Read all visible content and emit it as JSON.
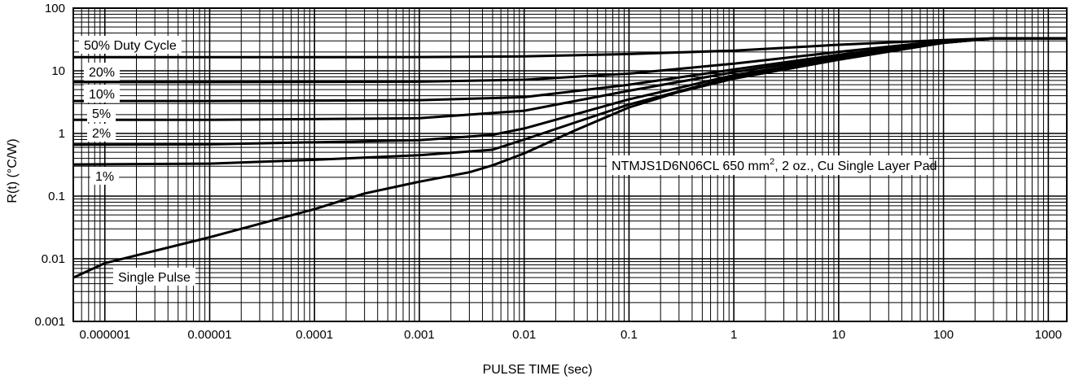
{
  "chart_data": {
    "type": "line",
    "title": "",
    "xlabel": "PULSE TIME (sec)",
    "ylabel": "R(t) (°C/W)",
    "xscale": "log",
    "yscale": "log",
    "xlim": [
      5e-07,
      1500
    ],
    "ylim": [
      0.001,
      100
    ],
    "grid": true,
    "x_tick_labels": [
      "0.000001",
      "0.00001",
      "0.0001",
      "0.001",
      "0.01",
      "0.1",
      "1",
      "10",
      "100",
      "1000"
    ],
    "y_tick_labels": [
      "0.001",
      "0.01",
      "0.1",
      "1",
      "10",
      "100"
    ],
    "annotation": {
      "text": "NTMJS1D6N06CL 650 mm",
      "sup": "2",
      "rest": ", 2 oz., Cu Single Layer Pad"
    },
    "series": [
      {
        "name": "50% Duty Cycle",
        "points": [
          [
            5e-07,
            16.5
          ],
          [
            1e-05,
            16.5
          ],
          [
            0.001,
            16.6
          ],
          [
            0.01,
            17
          ],
          [
            0.1,
            18.5
          ],
          [
            1,
            21
          ],
          [
            10,
            26
          ],
          [
            100,
            31
          ],
          [
            300,
            33
          ],
          [
            1500,
            33
          ]
        ]
      },
      {
        "name": "20%",
        "points": [
          [
            5e-07,
            6.6
          ],
          [
            1e-05,
            6.6
          ],
          [
            0.001,
            6.7
          ],
          [
            0.01,
            7.2
          ],
          [
            0.1,
            9
          ],
          [
            1,
            13
          ],
          [
            10,
            20
          ],
          [
            100,
            30
          ],
          [
            300,
            33
          ],
          [
            1500,
            33
          ]
        ]
      },
      {
        "name": "10%",
        "points": [
          [
            5e-07,
            3.3
          ],
          [
            1e-05,
            3.3
          ],
          [
            0.001,
            3.4
          ],
          [
            0.01,
            3.8
          ],
          [
            0.1,
            6
          ],
          [
            1,
            10.5
          ],
          [
            10,
            18
          ],
          [
            100,
            29
          ],
          [
            300,
            33
          ],
          [
            1500,
            33
          ]
        ]
      },
      {
        "name": "5%",
        "points": [
          [
            5e-07,
            1.65
          ],
          [
            1e-05,
            1.65
          ],
          [
            0.001,
            1.75
          ],
          [
            0.01,
            2.3
          ],
          [
            0.1,
            4.8
          ],
          [
            1,
            9.5
          ],
          [
            10,
            17
          ],
          [
            100,
            28.5
          ],
          [
            300,
            33
          ],
          [
            1500,
            33
          ]
        ]
      },
      {
        "name": "2%",
        "points": [
          [
            5e-07,
            0.66
          ],
          [
            1e-05,
            0.67
          ],
          [
            0.001,
            0.78
          ],
          [
            0.005,
            0.95
          ],
          [
            0.01,
            1.2
          ],
          [
            0.1,
            3.5
          ],
          [
            1,
            8.5
          ],
          [
            10,
            16
          ],
          [
            100,
            28
          ],
          [
            300,
            33
          ],
          [
            1500,
            33
          ]
        ]
      },
      {
        "name": "1%",
        "points": [
          [
            5e-07,
            0.32
          ],
          [
            1e-05,
            0.33
          ],
          [
            0.0001,
            0.38
          ],
          [
            0.001,
            0.45
          ],
          [
            0.005,
            0.55
          ],
          [
            0.01,
            0.8
          ],
          [
            0.1,
            2.9
          ],
          [
            1,
            8
          ],
          [
            10,
            15.5
          ],
          [
            100,
            28
          ],
          [
            300,
            33
          ],
          [
            1500,
            33
          ]
        ]
      },
      {
        "name": "Single Pulse",
        "points": [
          [
            5e-07,
            0.005
          ],
          [
            1e-06,
            0.0085
          ],
          [
            1e-05,
            0.022
          ],
          [
            0.0001,
            0.062
          ],
          [
            0.0003,
            0.11
          ],
          [
            0.001,
            0.17
          ],
          [
            0.003,
            0.24
          ],
          [
            0.005,
            0.31
          ],
          [
            0.01,
            0.48
          ],
          [
            0.03,
            1.1
          ],
          [
            0.1,
            2.6
          ],
          [
            0.3,
            4.6
          ],
          [
            1,
            7.5
          ],
          [
            10,
            15
          ],
          [
            100,
            28
          ],
          [
            300,
            33
          ],
          [
            1500,
            33
          ]
        ]
      }
    ]
  }
}
